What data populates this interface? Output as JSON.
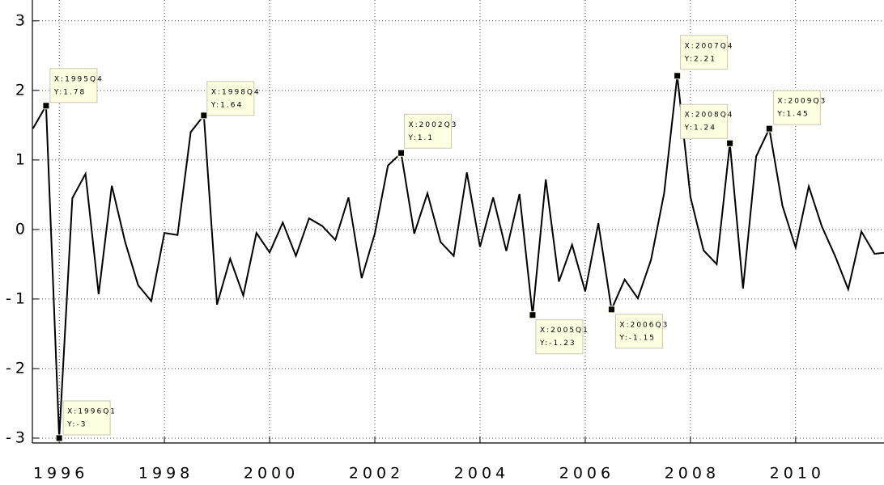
{
  "chart_data": {
    "type": "line",
    "x": [
      1995.5,
      1995.75,
      1996,
      1996.25,
      1996.5,
      1996.75,
      1997,
      1997.25,
      1997.5,
      1997.75,
      1998,
      1998.25,
      1998.5,
      1998.75,
      1999,
      1999.25,
      1999.5,
      1999.75,
      2000,
      2000.25,
      2000.5,
      2000.75,
      2001,
      2001.25,
      2001.5,
      2001.75,
      2002,
      2002.25,
      2002.5,
      2002.75,
      2003,
      2003.25,
      2003.5,
      2003.75,
      2004,
      2004.25,
      2004.5,
      2004.75,
      2005,
      2005.25,
      2005.5,
      2005.75,
      2006,
      2006.25,
      2006.5,
      2006.75,
      2007,
      2007.25,
      2007.5,
      2007.75,
      2008,
      2008.25,
      2008.5,
      2008.75,
      2009,
      2009.25,
      2009.5,
      2009.75,
      2010,
      2010.25,
      2010.5,
      2010.75,
      2011,
      2011.25,
      2011.5,
      2011.75
    ],
    "values": [
      1.45,
      1.78,
      -3,
      0.45,
      0.8,
      -0.93,
      0.63,
      -0.17,
      -0.8,
      -1.03,
      -0.05,
      -0.08,
      1.4,
      1.64,
      -1.08,
      -0.42,
      -0.95,
      -0.05,
      -0.33,
      0.1,
      -0.38,
      0.16,
      0.05,
      -0.15,
      0.46,
      -0.7,
      -0.06,
      0.92,
      1.1,
      -0.06,
      0.52,
      -0.18,
      -0.38,
      0.82,
      -0.25,
      0.46,
      -0.31,
      0.51,
      -1.23,
      0.72,
      -0.75,
      -0.22,
      -0.89,
      0.09,
      -1.15,
      -0.72,
      -0.99,
      -0.44,
      0.52,
      2.21,
      0.47,
      -0.3,
      -0.5,
      1.24,
      -0.85,
      1.05,
      1.45,
      0.34,
      -0.26,
      0.62,
      0.04,
      -0.38,
      -0.86,
      -0.03,
      -0.35,
      -0.33
    ],
    "color": "#000000",
    "xlim": [
      1995.49,
      2011.68
    ],
    "ylim": [
      -3.07,
      3.3
    ],
    "xticks": [
      1996,
      1998,
      2000,
      2002,
      2004,
      2006,
      2008,
      2010
    ],
    "yticks": [
      -3,
      -2,
      -1,
      0,
      1,
      2,
      3
    ],
    "grid": true,
    "annotations": [
      {
        "x": 1995.75,
        "y": 1.78,
        "x_label": "X:1995Q4",
        "y_label": "Y:1.78"
      },
      {
        "x": 1996,
        "y": -3,
        "x_label": "X:1996Q1",
        "y_label": "Y:-3"
      },
      {
        "x": 1998.75,
        "y": 1.64,
        "x_label": "X:1998Q4",
        "y_label": "Y:1.64"
      },
      {
        "x": 2002.5,
        "y": 1.1,
        "x_label": "X:2002Q3",
        "y_label": "Y:1.1"
      },
      {
        "x": 2005,
        "y": -1.23,
        "x_label": "X:2005Q1",
        "y_label": "Y:-1.23"
      },
      {
        "x": 2006.5,
        "y": -1.15,
        "x_label": "X:2006Q3",
        "y_label": "Y:-1.15"
      },
      {
        "x": 2007.75,
        "y": 2.21,
        "x_label": "X:2007Q4",
        "y_label": "Y:2.21"
      },
      {
        "x": 2008.75,
        "y": 1.24,
        "x_label": "X:2008Q4",
        "y_label": "Y:1.24"
      },
      {
        "x": 2009.5,
        "y": 1.45,
        "x_label": "X:2009Q3",
        "y_label": "Y:1.45"
      }
    ]
  }
}
